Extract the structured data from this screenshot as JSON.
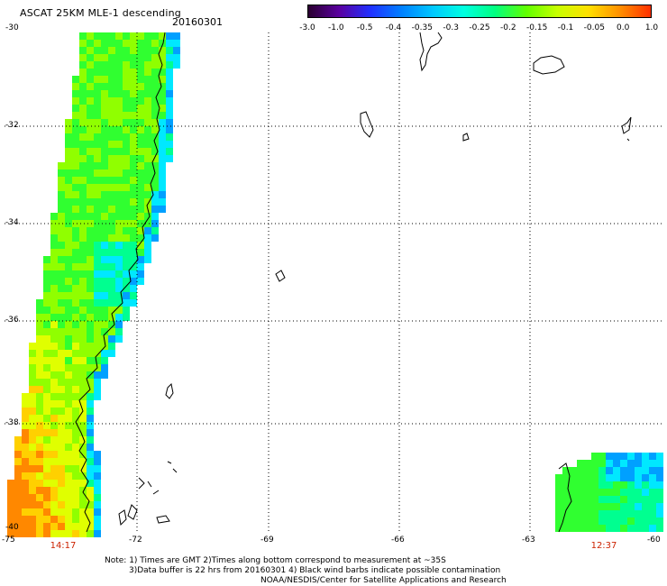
{
  "header": {
    "title": "ASCAT 25KM MLE-1 descending",
    "date": "20160301"
  },
  "colorbar": {
    "labels": [
      "-3.0",
      "-1.0",
      "-0.5",
      "-0.4",
      "-0.35",
      "-0.3",
      "-0.25",
      "-0.2",
      "-0.15",
      "-0.1",
      "-0.05",
      "0.0",
      "1.0"
    ],
    "colors": [
      "#2a0030",
      "#5a00a0",
      "#2030ff",
      "#0080ff",
      "#00c8ff",
      "#00ffe0",
      "#00ff80",
      "#60ff00",
      "#c8ff00",
      "#ffe000",
      "#ff9000",
      "#ff3000"
    ]
  },
  "axes": {
    "lat_labels": [
      "-30",
      "-32",
      "-34",
      "-36",
      "-38",
      "-40"
    ],
    "lon_labels": [
      "-75",
      "-72",
      "-69",
      "-66",
      "-63",
      "-60"
    ]
  },
  "pass_times": [
    "14:17",
    "12:37"
  ],
  "notes": {
    "line1": "Note: 1) Times are GMT 2)Times along bottom correspond to measurement at ~35S",
    "line2": "3)Data buffer is 22 hrs from 20160301 4) Black wind barbs indicate possible contamination",
    "line3": "NOAA/NESDIS/Center for Satellite Applications and Research"
  }
}
